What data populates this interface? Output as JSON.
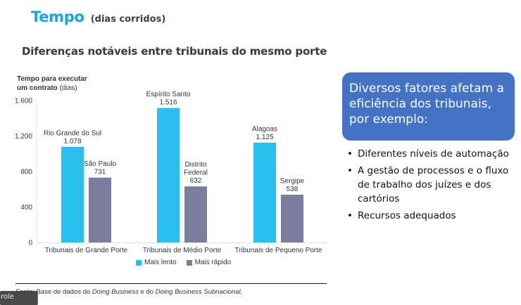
{
  "slide": {
    "title": "Tempo",
    "title_suffix": "(dias corridos)",
    "subtitle": "Diferenças notáveis entre tribunais do mesmo porte",
    "source_prefix": "Fonte: ",
    "source_text_1": "Base de dados do ",
    "source_italic_1": "Doing Business",
    "source_text_2": " e do ",
    "source_italic_2": "Doing Business Subnacional.",
    "tooltip_fragment": "role"
  },
  "callout": {
    "text": "Diversos fatores afetam a eficiência dos tribunais, por exemplo:",
    "bullets": [
      "Diferentes níveis de automação",
      "A gestão de processos e o fluxo de trabalho dos juízes e dos cartórios",
      "Recursos adequados"
    ]
  },
  "chart_data": {
    "type": "bar",
    "ylabel_bold": "Tempo para executar um contrato",
    "ylabel_suffix": "(dias)",
    "ylim": [
      0,
      1600
    ],
    "yticks": [
      0,
      400,
      800,
      1200,
      1600
    ],
    "ytick_labels": [
      "0",
      "400",
      "800",
      "1.200",
      "1.600"
    ],
    "grid": false,
    "legend_position": "bottom",
    "categories": [
      "Tribunais de Grande Porte",
      "Tribunais de Médio Porte",
      "Tribunais de Pequeno Porte"
    ],
    "series": [
      {
        "name": "Mais lento",
        "color": "#29c0ef",
        "values": [
          1078,
          1516,
          1125
        ],
        "value_labels": [
          "1.078",
          "1.516",
          "1.125"
        ],
        "point_labels": [
          [
            "Rio Grande do Sul"
          ],
          [
            "Espírito Santo"
          ],
          [
            "Alagoas"
          ]
        ]
      },
      {
        "name": "Mais rápido",
        "color": "#7b7d9e",
        "values": [
          731,
          632,
          538
        ],
        "value_labels": [
          "731",
          "632",
          "538"
        ],
        "point_labels": [
          [
            "São Paulo"
          ],
          [
            "Distrito",
            "Federal"
          ],
          [
            "Sergipe"
          ]
        ]
      }
    ]
  }
}
